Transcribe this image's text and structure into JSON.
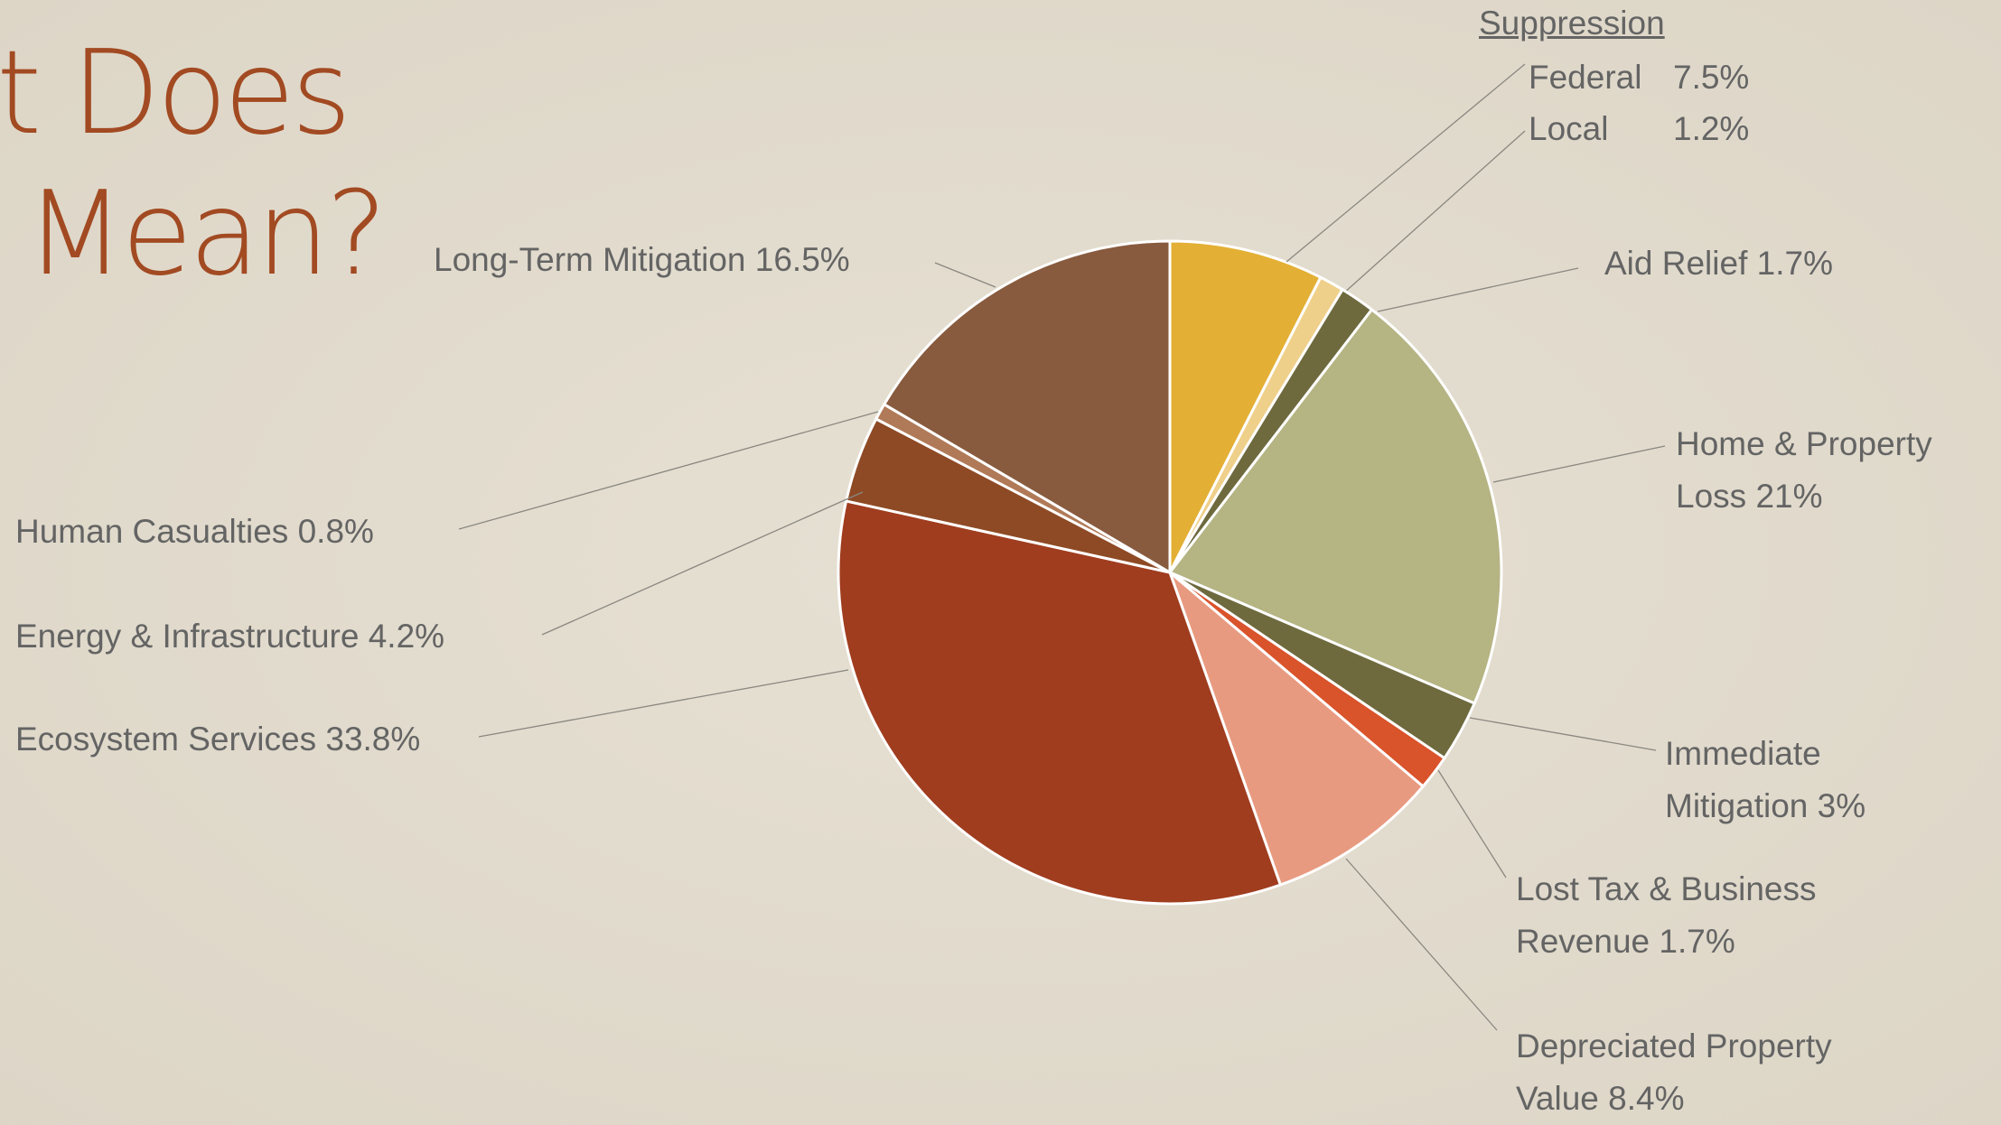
{
  "chart_data": {
    "type": "pie",
    "title_lines": [
      "t Does",
      "Mean?"
    ],
    "group_label": "Suppression",
    "categories": [
      "Federal",
      "Local",
      "Aid Relief",
      "Home & Property Loss",
      "Immediate Mitigation",
      "Lost Tax & Business Revenue",
      "Depreciated Property Value",
      "Ecosystem Services",
      "Energy & Infrastructure",
      "Human Casualties",
      "Long-Term Mitigation"
    ],
    "values": [
      7.5,
      1.2,
      1.7,
      21,
      3,
      1.7,
      8.4,
      33.8,
      4.2,
      0.8,
      16.5
    ],
    "value_labels": [
      "7.5%",
      "1.2%",
      "1.7%",
      "21%",
      "3%",
      "1.7%",
      "8.4%",
      "33.8%",
      "4.2%",
      "0.8%",
      "16.5%"
    ],
    "colors": [
      "#e3b035",
      "#efd08a",
      "#6e6a3e",
      "#b5b483",
      "#6e6a3e",
      "#d9532b",
      "#e89a80",
      "#a03d1f",
      "#8e4a25",
      "#b07a58",
      "#885b3f"
    ]
  }
}
